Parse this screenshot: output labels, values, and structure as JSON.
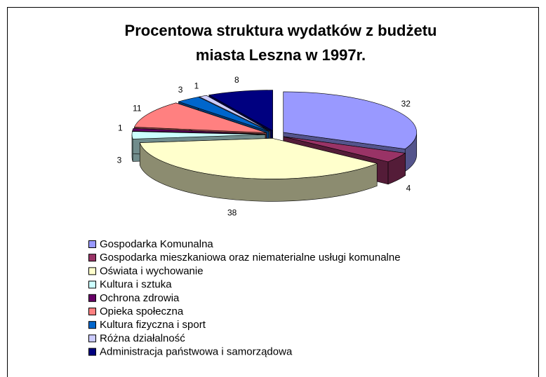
{
  "chart_data": {
    "type": "pie3d",
    "title": [
      "Procentowa struktura wydatków z budżetu",
      "miasta Leszna w 1997r."
    ],
    "categories": [
      "Gospodarka Komunalna",
      "Gospodarka mieszkaniowa oraz niematerialne usługi komunalne",
      "Oświata i wychowanie",
      "Kultura i sztuka",
      "Ochrona zdrowia",
      "Opieka społeczna",
      "Kultura fizyczna i sport",
      "Różna działalność",
      "Administracja państwowa i samorządowa"
    ],
    "values": [
      32,
      4,
      38,
      3,
      1,
      11,
      3,
      1,
      8
    ],
    "colors": [
      "#9999ff",
      "#993366",
      "#ffffcc",
      "#ccffff",
      "#660066",
      "#ff8080",
      "#0066cc",
      "#ccccff",
      "#000080"
    ],
    "legend": "bottom"
  }
}
